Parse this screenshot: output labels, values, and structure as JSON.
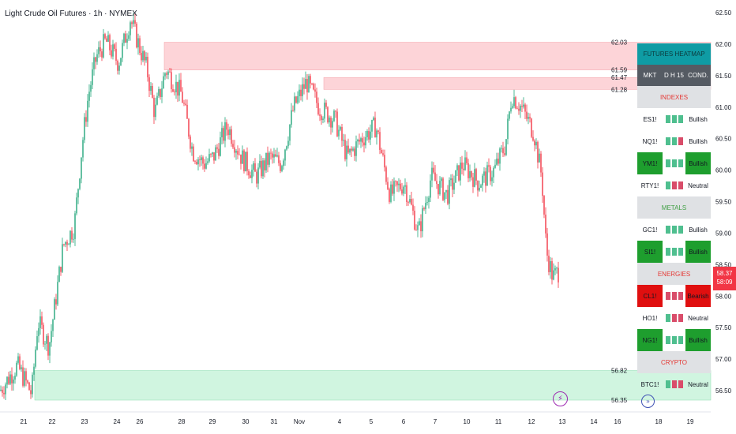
{
  "header": {
    "title": "Light Crude Oil Futures · 1h · NYMEX"
  },
  "colors": {
    "up": "#22a67a",
    "down": "#f23645",
    "supply_zone": "#fdd4d8",
    "demand_zone": "#d0f5e0",
    "heatmap_header": "#0f9ca4"
  },
  "price_axis": {
    "labels": [
      "62.50",
      "62.00",
      "61.50",
      "61.00",
      "60.50",
      "60.00",
      "59.50",
      "59.00",
      "58.50",
      "58.00",
      "57.50",
      "57.00",
      "56.50"
    ]
  },
  "time_axis": {
    "labels": [
      "21",
      "22",
      "23",
      "24",
      "26",
      "28",
      "29",
      "30",
      "31",
      "Nov",
      "4",
      "5",
      "6",
      "7",
      "10",
      "11",
      "12",
      "13",
      "14",
      "16",
      "18",
      "19"
    ]
  },
  "zones": [
    {
      "type": "supply",
      "top_label": "62.03",
      "bottom_label": "61.59",
      "top": 62.03,
      "bottom": 61.59
    },
    {
      "type": "supply",
      "top_label": "61.47",
      "bottom_label": "61.28",
      "top": 61.47,
      "bottom": 61.28
    },
    {
      "type": "demand",
      "top_label": "56.82",
      "bottom_label": "56.35",
      "top": 56.82,
      "bottom": 56.35
    }
  ],
  "current_price": {
    "price": "58.37",
    "countdown": "58:09",
    "value": 58.37
  },
  "chart_data": {
    "type": "candlestick",
    "title": "Light Crude Oil Futures · 1h · NYMEX",
    "ylim": [
      56.2,
      62.6
    ],
    "x_tick_labels": [
      "21",
      "22",
      "23",
      "24",
      "26",
      "28",
      "29",
      "30",
      "31",
      "Nov",
      "4",
      "5",
      "6",
      "7",
      "10",
      "11",
      "12",
      "13",
      "14",
      "16",
      "18",
      "19"
    ],
    "y_tick_labels": [
      "62.50",
      "62.00",
      "61.50",
      "61.00",
      "60.50",
      "60.00",
      "59.50",
      "59.00",
      "58.50",
      "58.00",
      "57.50",
      "57.00",
      "56.50"
    ],
    "path": [
      [
        0,
        56.5
      ],
      [
        22,
        56.9
      ],
      [
        40,
        56.45
      ],
      [
        48,
        57.6
      ],
      [
        62,
        57.2
      ],
      [
        70,
        57.9
      ],
      [
        80,
        58.8
      ],
      [
        94,
        59.1
      ],
      [
        104,
        60.4
      ],
      [
        112,
        61.2
      ],
      [
        122,
        61.8
      ],
      [
        134,
        62.05
      ],
      [
        150,
        61.7
      ],
      [
        165,
        62.4
      ],
      [
        178,
        61.9
      ],
      [
        186,
        61.6
      ],
      [
        196,
        60.9
      ],
      [
        210,
        61.6
      ],
      [
        230,
        61.2
      ],
      [
        244,
        60.3
      ],
      [
        258,
        60.1
      ],
      [
        270,
        60.2
      ],
      [
        288,
        60.7
      ],
      [
        306,
        60.2
      ],
      [
        324,
        59.9
      ],
      [
        342,
        60.2
      ],
      [
        356,
        60.1
      ],
      [
        372,
        61.0
      ],
      [
        388,
        61.4
      ],
      [
        404,
        61.0
      ],
      [
        424,
        60.8
      ],
      [
        440,
        60.2
      ],
      [
        458,
        60.5
      ],
      [
        476,
        60.7
      ],
      [
        494,
        59.6
      ],
      [
        512,
        59.8
      ],
      [
        530,
        59.0
      ],
      [
        546,
        59.9
      ],
      [
        566,
        59.6
      ],
      [
        586,
        60.1
      ],
      [
        606,
        59.8
      ],
      [
        626,
        60.0
      ],
      [
        640,
        60.4
      ],
      [
        648,
        61.2
      ],
      [
        660,
        61.0
      ],
      [
        676,
        60.6
      ],
      [
        686,
        59.9
      ],
      [
        692,
        58.7
      ],
      [
        700,
        58.3
      ],
      [
        708,
        58.4
      ]
    ]
  },
  "heatmap": {
    "title": "FUTURES HEATMAP",
    "headers": {
      "market": "MKT",
      "timeframes": "D H 15",
      "condition": "COND."
    },
    "sections": [
      {
        "name": "INDEXES",
        "color": "#e53935",
        "rows": [
          {
            "symbol": "ES1!",
            "bars": [
              "up",
              "up",
              "up"
            ],
            "condition": "Bullish",
            "highlight": false
          },
          {
            "symbol": "NQ1!",
            "bars": [
              "up",
              "up",
              "down"
            ],
            "condition": "Bullish",
            "highlight": false
          },
          {
            "symbol": "YM1!",
            "bars": [
              "up",
              "up",
              "up"
            ],
            "condition": "Bullish",
            "highlight": true,
            "hl_color": "green"
          },
          {
            "symbol": "RTY1!",
            "bars": [
              "up",
              "down",
              "down"
            ],
            "condition": "Neutral",
            "highlight": false
          }
        ]
      },
      {
        "name": "METALS",
        "color": "#43a047",
        "rows": [
          {
            "symbol": "GC1!",
            "bars": [
              "up",
              "up",
              "up"
            ],
            "condition": "Bullish",
            "highlight": false
          },
          {
            "symbol": "SI1!",
            "bars": [
              "up",
              "up",
              "up"
            ],
            "condition": "Bullish",
            "highlight": true,
            "hl_color": "green"
          }
        ]
      },
      {
        "name": "ENERGIES",
        "color": "#e53935",
        "rows": [
          {
            "symbol": "CL1!",
            "bars": [
              "down",
              "down",
              "down"
            ],
            "condition": "Bearish",
            "highlight": true,
            "hl_color": "red"
          },
          {
            "symbol": "HO1!",
            "bars": [
              "up",
              "down",
              "down"
            ],
            "condition": "Neutral",
            "highlight": false
          },
          {
            "symbol": "NG1!",
            "bars": [
              "up",
              "up",
              "up"
            ],
            "condition": "Bullish",
            "highlight": true,
            "hl_color": "green"
          }
        ]
      },
      {
        "name": "CRYPTO",
        "color": "#e53935",
        "rows": [
          {
            "symbol": "BTC1!",
            "bars": [
              "up",
              "down",
              "down"
            ],
            "condition": "Neutral",
            "highlight": false
          }
        ]
      }
    ]
  },
  "icons": {
    "alert": "lightning-icon",
    "replay": "arrows-icon"
  }
}
